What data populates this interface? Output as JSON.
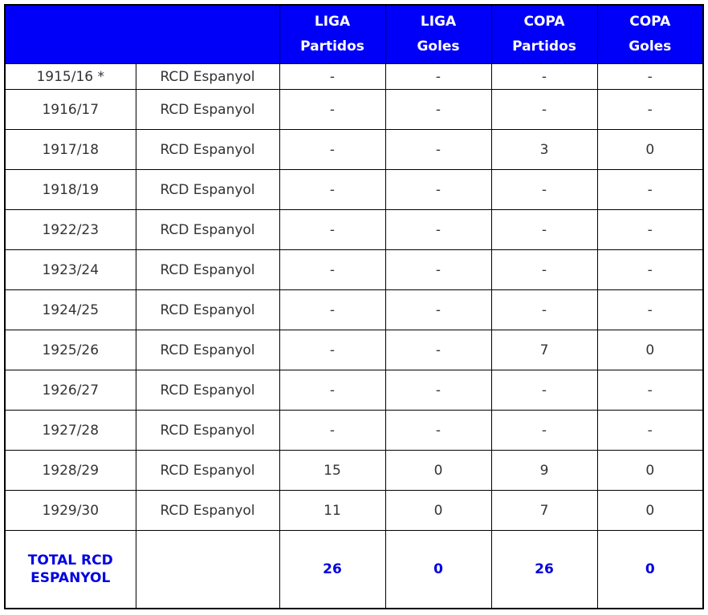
{
  "colors": {
    "header_bg": "#0000f8",
    "header_text": "#ffffff",
    "body_text": "#333333",
    "total_text": "#0000e0",
    "border": "#000000"
  },
  "chart_data": {
    "type": "table",
    "header": {
      "blank_label": "",
      "columns": [
        {
          "line1": "LIGA",
          "line2": "Partidos"
        },
        {
          "line1": "LIGA",
          "line2": "Goles"
        },
        {
          "line1": "COPA",
          "line2": "Partidos"
        },
        {
          "line1": "COPA",
          "line2": "Goles"
        }
      ]
    },
    "rows": [
      {
        "season": "1915/16 *",
        "club": "RCD Espanyol",
        "liga_partidos": "-",
        "liga_goles": "-",
        "copa_partidos": "-",
        "copa_goles": "-"
      },
      {
        "season": "1916/17",
        "club": "RCD Espanyol",
        "liga_partidos": "-",
        "liga_goles": "-",
        "copa_partidos": "-",
        "copa_goles": "-"
      },
      {
        "season": "1917/18",
        "club": "RCD Espanyol",
        "liga_partidos": "-",
        "liga_goles": "-",
        "copa_partidos": "3",
        "copa_goles": "0"
      },
      {
        "season": "1918/19",
        "club": "RCD Espanyol",
        "liga_partidos": "-",
        "liga_goles": "-",
        "copa_partidos": "-",
        "copa_goles": "-"
      },
      {
        "season": "1922/23",
        "club": "RCD Espanyol",
        "liga_partidos": "-",
        "liga_goles": "-",
        "copa_partidos": "-",
        "copa_goles": "-"
      },
      {
        "season": "1923/24",
        "club": "RCD Espanyol",
        "liga_partidos": "-",
        "liga_goles": "-",
        "copa_partidos": "-",
        "copa_goles": "-"
      },
      {
        "season": "1924/25",
        "club": "RCD Espanyol",
        "liga_partidos": "-",
        "liga_goles": "-",
        "copa_partidos": "-",
        "copa_goles": "-"
      },
      {
        "season": "1925/26",
        "club": "RCD Espanyol",
        "liga_partidos": "-",
        "liga_goles": "-",
        "copa_partidos": "7",
        "copa_goles": "0"
      },
      {
        "season": "1926/27",
        "club": "RCD Espanyol",
        "liga_partidos": "-",
        "liga_goles": "-",
        "copa_partidos": "-",
        "copa_goles": "-"
      },
      {
        "season": "1927/28",
        "club": "RCD Espanyol",
        "liga_partidos": "-",
        "liga_goles": "-",
        "copa_partidos": "-",
        "copa_goles": "-"
      },
      {
        "season": "1928/29",
        "club": "RCD Espanyol",
        "liga_partidos": "15",
        "liga_goles": "0",
        "copa_partidos": "9",
        "copa_goles": "0"
      },
      {
        "season": "1929/30",
        "club": "RCD Espanyol",
        "liga_partidos": "11",
        "liga_goles": "0",
        "copa_partidos": "7",
        "copa_goles": "0"
      }
    ],
    "total": {
      "label": "TOTAL RCD ESPANYOL",
      "club": "",
      "liga_partidos": "26",
      "liga_goles": "0",
      "copa_partidos": "26",
      "copa_goles": "0"
    }
  }
}
